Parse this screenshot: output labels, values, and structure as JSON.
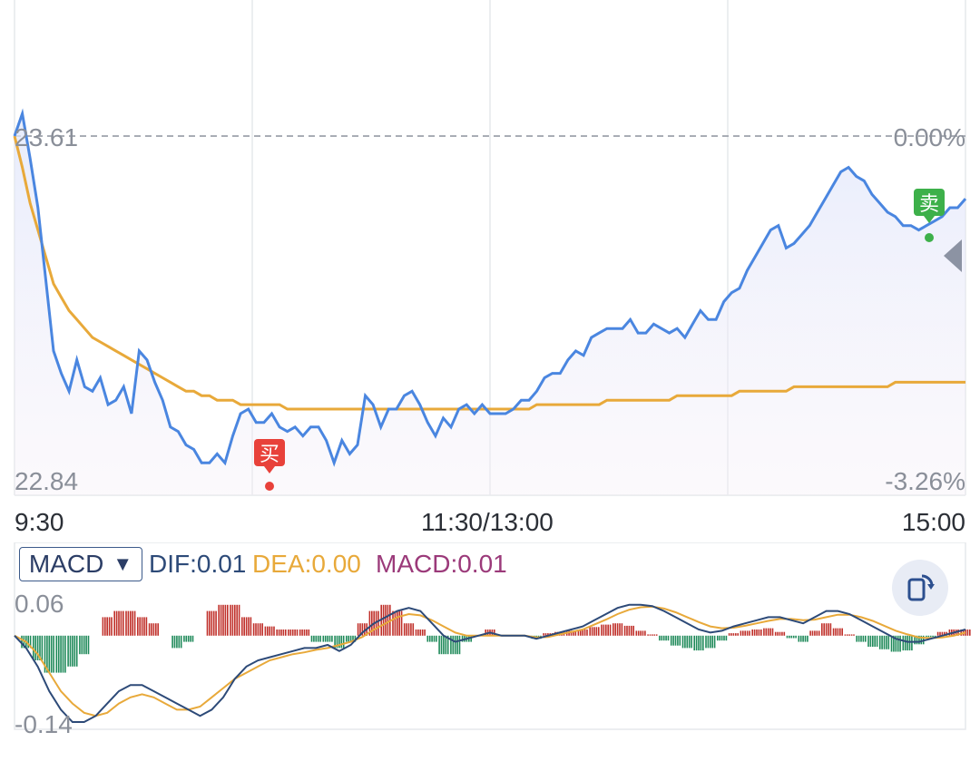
{
  "price_axis": {
    "top_price": "23.61",
    "bottom_price": "22.84",
    "top_pct": "0.00%",
    "bottom_pct": "-3.26%"
  },
  "time_axis": [
    "9:30",
    "11:30/13:00",
    "15:00"
  ],
  "signals": {
    "buy": "买",
    "sell": "卖"
  },
  "indicator": {
    "selector_label": "MACD",
    "selector_arrow": "▼",
    "dif": "DIF:0.01",
    "dea": "DEA:0.00",
    "macd": "MACD:0.01",
    "top_value": "0.06",
    "bottom_value": "-0.14"
  },
  "colors": {
    "price_line": "#4a86e0",
    "avg_line": "#e8a93a",
    "dif_line": "#2d4a78",
    "dea_line": "#e8a93a",
    "macd_label": "#9b3a7a",
    "bar_up": "#c0302a",
    "bar_down": "#1f8a5a",
    "buy": "#e8413a",
    "sell": "#3db04a"
  },
  "chart_data": [
    {
      "type": "line",
      "x_labels": [
        "9:30",
        "11:30/13:00",
        "15:00"
      ],
      "ylim": [
        22.84,
        23.61
      ],
      "prev_close": 23.61,
      "series": [
        {
          "values": [
            23.61,
            23.66,
            23.56,
            23.45,
            23.29,
            23.13,
            23.08,
            23.04,
            23.11,
            23.05,
            23.04,
            23.07,
            23.01,
            23.02,
            23.05,
            22.99,
            23.13,
            23.11,
            23.06,
            23.02,
            22.96,
            22.95,
            22.92,
            22.91,
            22.88,
            22.88,
            22.9,
            22.88,
            22.94,
            22.99,
            23.0,
            22.97,
            22.97,
            22.99,
            22.96,
            22.95,
            22.96,
            22.94,
            22.96,
            22.96,
            22.93,
            22.88,
            22.93,
            22.9,
            22.92,
            23.03,
            23.01,
            22.96,
            23.0,
            23.0,
            23.03,
            23.04,
            23.01,
            22.97,
            22.94,
            22.98,
            22.96,
            23.0,
            23.01,
            22.99,
            23.01,
            22.99,
            22.99,
            22.99,
            23.0,
            23.02,
            23.02,
            23.04,
            23.07,
            23.08,
            23.08,
            23.11,
            23.13,
            23.12,
            23.16,
            23.17,
            23.18,
            23.18,
            23.18,
            23.2,
            23.17,
            23.17,
            23.19,
            23.18,
            23.17,
            23.18,
            23.16,
            23.19,
            23.22,
            23.2,
            23.2,
            23.24,
            23.26,
            23.27,
            23.31,
            23.34,
            23.37,
            23.4,
            23.41,
            23.36,
            23.37,
            23.39,
            23.41,
            23.44,
            23.47,
            23.5,
            23.53,
            23.54,
            23.52,
            23.51,
            23.48,
            23.46,
            23.44,
            23.43,
            23.41,
            23.41,
            23.4,
            23.41,
            23.42,
            23.43,
            23.45,
            23.45,
            23.47
          ]
        },
        {
          "values": [
            23.61,
            23.54,
            23.46,
            23.4,
            23.34,
            23.28,
            23.25,
            23.22,
            23.2,
            23.18,
            23.16,
            23.15,
            23.14,
            23.13,
            23.12,
            23.11,
            23.1,
            23.09,
            23.08,
            23.07,
            23.06,
            23.05,
            23.04,
            23.04,
            23.03,
            23.03,
            23.02,
            23.02,
            23.02,
            23.01,
            23.01,
            23.01,
            23.01,
            23.01,
            23.01,
            23.0,
            23.0,
            23.0,
            23.0,
            23.0,
            23.0,
            23.0,
            23.0,
            23.0,
            23.0,
            23.0,
            23.0,
            23.0,
            23.0,
            23.0,
            23.0,
            23.0,
            23.0,
            23.0,
            23.0,
            23.0,
            23.0,
            23.0,
            23.0,
            23.0,
            23.0,
            23.0,
            23.0,
            23.0,
            23.0,
            23.0,
            23.0,
            23.01,
            23.01,
            23.01,
            23.01,
            23.01,
            23.01,
            23.01,
            23.01,
            23.01,
            23.02,
            23.02,
            23.02,
            23.02,
            23.02,
            23.02,
            23.02,
            23.02,
            23.02,
            23.03,
            23.03,
            23.03,
            23.03,
            23.03,
            23.03,
            23.03,
            23.03,
            23.04,
            23.04,
            23.04,
            23.04,
            23.04,
            23.04,
            23.04,
            23.05,
            23.05,
            23.05,
            23.05,
            23.05,
            23.05,
            23.05,
            23.05,
            23.05,
            23.05,
            23.05,
            23.05,
            23.05,
            23.06,
            23.06,
            23.06,
            23.06,
            23.06,
            23.06,
            23.06,
            23.06,
            23.06,
            23.06
          ]
        }
      ],
      "y_pct_range": [
        "0.00%",
        "-3.26%"
      ]
    },
    {
      "type": "line",
      "ylim": [
        -0.14,
        0.06
      ],
      "series": [
        {
          "name": "DIF",
          "values": [
            0.0,
            -0.02,
            -0.05,
            -0.09,
            -0.12,
            -0.14,
            -0.14,
            -0.13,
            -0.11,
            -0.09,
            -0.08,
            -0.08,
            -0.09,
            -0.1,
            -0.11,
            -0.12,
            -0.13,
            -0.12,
            -0.1,
            -0.07,
            -0.05,
            -0.04,
            -0.035,
            -0.03,
            -0.025,
            -0.02,
            -0.02,
            -0.015,
            -0.025,
            -0.015,
            0.005,
            0.02,
            0.03,
            0.04,
            0.045,
            0.04,
            0.02,
            0.0,
            -0.01,
            -0.005,
            0.0,
            0.005,
            0.0,
            0.0,
            0.0,
            -0.005,
            0.0,
            0.005,
            0.01,
            0.015,
            0.025,
            0.035,
            0.045,
            0.05,
            0.05,
            0.048,
            0.04,
            0.03,
            0.02,
            0.01,
            0.005,
            0.008,
            0.015,
            0.02,
            0.025,
            0.03,
            0.03,
            0.025,
            0.02,
            0.03,
            0.04,
            0.04,
            0.035,
            0.025,
            0.015,
            0.005,
            -0.005,
            -0.01,
            -0.01,
            -0.005,
            0.0,
            0.005,
            0.01
          ]
        },
        {
          "name": "DEA",
          "values": [
            0.0,
            -0.01,
            -0.03,
            -0.06,
            -0.09,
            -0.11,
            -0.125,
            -0.13,
            -0.125,
            -0.11,
            -0.1,
            -0.095,
            -0.1,
            -0.11,
            -0.12,
            -0.12,
            -0.115,
            -0.1,
            -0.085,
            -0.07,
            -0.06,
            -0.05,
            -0.04,
            -0.035,
            -0.03,
            -0.027,
            -0.023,
            -0.02,
            -0.015,
            -0.01,
            -0.002,
            0.01,
            0.02,
            0.03,
            0.035,
            0.033,
            0.025,
            0.015,
            0.005,
            0.0,
            0.0,
            0.0,
            0.0,
            0.0,
            0.0,
            -0.003,
            -0.002,
            0.002,
            0.006,
            0.01,
            0.018,
            0.026,
            0.035,
            0.042,
            0.046,
            0.047,
            0.044,
            0.038,
            0.03,
            0.022,
            0.015,
            0.012,
            0.013,
            0.016,
            0.02,
            0.024,
            0.027,
            0.027,
            0.025,
            0.026,
            0.03,
            0.034,
            0.034,
            0.03,
            0.024,
            0.016,
            0.008,
            0.002,
            -0.003,
            -0.004,
            -0.003,
            0.0,
            0.005
          ]
        },
        {
          "name": "MACD",
          "type": "bar",
          "values": [
            0.0,
            -0.02,
            -0.04,
            -0.06,
            -0.06,
            -0.05,
            -0.03,
            0.0,
            0.03,
            0.04,
            0.04,
            0.03,
            0.02,
            0.0,
            -0.02,
            -0.01,
            0.0,
            0.04,
            0.05,
            0.05,
            0.03,
            0.02,
            0.015,
            0.01,
            0.01,
            0.01,
            -0.01,
            -0.01,
            -0.02,
            -0.01,
            0.02,
            0.04,
            0.05,
            0.04,
            0.02,
            0.01,
            -0.01,
            -0.03,
            -0.03,
            -0.01,
            0.0,
            0.01,
            0.0,
            0.0,
            0.0,
            -0.005,
            0.004,
            0.006,
            0.008,
            0.01,
            0.014,
            0.018,
            0.02,
            0.016,
            0.008,
            0.002,
            -0.008,
            -0.016,
            -0.02,
            -0.024,
            -0.02,
            -0.008,
            0.004,
            0.008,
            0.01,
            0.012,
            0.006,
            -0.004,
            -0.01,
            0.008,
            0.02,
            0.012,
            0.002,
            -0.01,
            -0.018,
            -0.022,
            -0.026,
            -0.024,
            -0.014,
            -0.002,
            0.006,
            0.01,
            0.01
          ]
        }
      ]
    }
  ]
}
